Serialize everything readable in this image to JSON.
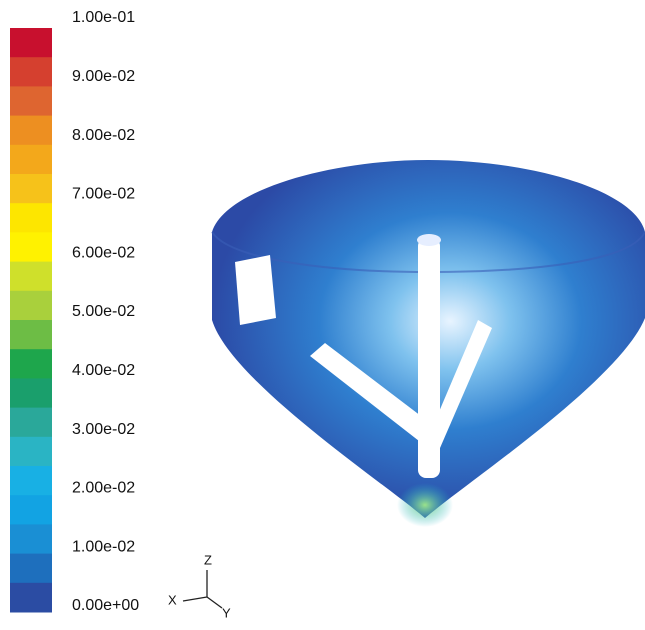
{
  "colorbar": {
    "labels": [
      "1.00e-01",
      "9.00e-02",
      "8.00e-02",
      "7.00e-02",
      "6.00e-02",
      "5.00e-02",
      "4.00e-02",
      "3.00e-02",
      "2.00e-02",
      "1.00e-02",
      "0.00e+00"
    ]
  },
  "triad": {
    "z": "Z",
    "x": "X",
    "y": "Y"
  }
}
